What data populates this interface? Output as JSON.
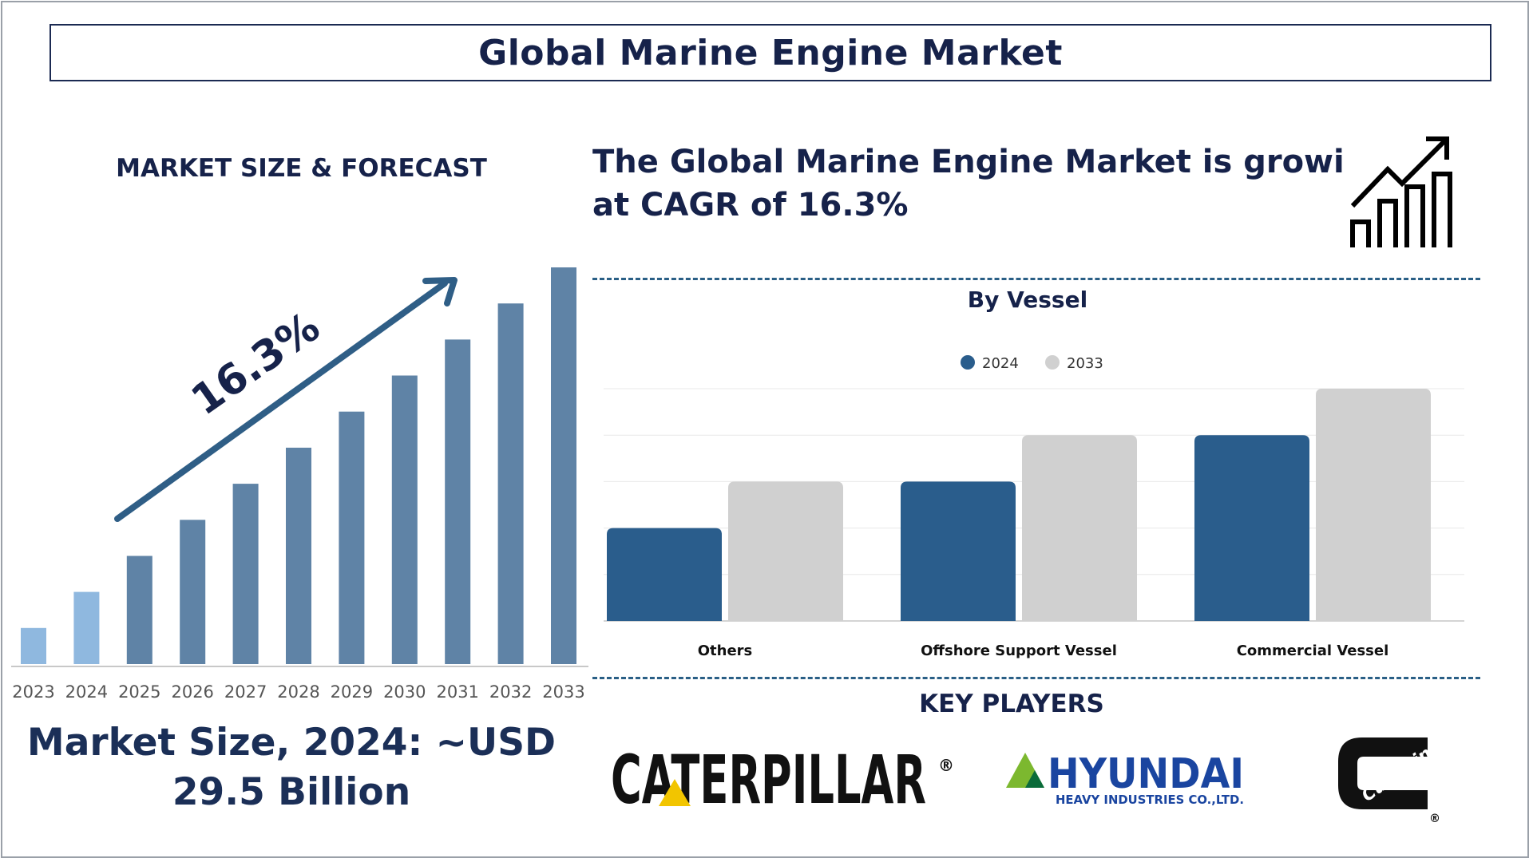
{
  "title": "Global Marine Engine Market",
  "left_panel": {
    "heading": "MARKET SIZE & FORECAST",
    "cagr_label": "16.3%",
    "market_size_line1": "Market Size, 2024: ~USD",
    "market_size_line2": "29.5 Billion"
  },
  "growth_statement": {
    "line1": "The Global Marine Engine Market is growing",
    "line2": "at CAGR of 16.3%"
  },
  "icons": {
    "growth": "bar-chart-trend-up-icon"
  },
  "colors": {
    "navy": "#16224a",
    "bar_highlight": "#8fb8df",
    "bar_forecast": "#5f83a6",
    "series_2024": "#2a5d8c",
    "series_2033": "#d0d0d0",
    "arrow": "#2f5e86"
  },
  "chart_data": [
    {
      "type": "bar",
      "title": "",
      "categories": [
        "2023",
        "2024",
        "2025",
        "2026",
        "2027",
        "2028",
        "2029",
        "2030",
        "2031",
        "2032",
        "2033"
      ],
      "values": [
        1,
        2,
        3,
        4,
        5,
        6,
        7,
        8,
        9,
        10,
        11
      ],
      "highlighted": [
        "2023",
        "2024"
      ],
      "annotation": "16.3%",
      "xlabel": "",
      "ylabel": "",
      "ylim": [
        0,
        11
      ],
      "grid": false,
      "legend": "none"
    },
    {
      "type": "bar",
      "title": "By Vessel",
      "categories": [
        "Others",
        "Offshore Support Vessel",
        "Commercial Vessel"
      ],
      "series": [
        {
          "name": "2024",
          "values": [
            2,
            3,
            4
          ]
        },
        {
          "name": "2033",
          "values": [
            3,
            4,
            5
          ]
        }
      ],
      "xlabel": "",
      "ylabel": "",
      "ylim": [
        0,
        5
      ],
      "grid": true,
      "legend": "top-center"
    }
  ],
  "key_players": {
    "heading": "KEY PLAYERS",
    "logos": [
      {
        "name": "CATERPILLAR",
        "mark": "®"
      },
      {
        "name": "HYUNDAI",
        "subtitle": "HEAVY INDUSTRIES CO.,LTD."
      },
      {
        "name": "Cummins",
        "mark": "®"
      }
    ]
  }
}
